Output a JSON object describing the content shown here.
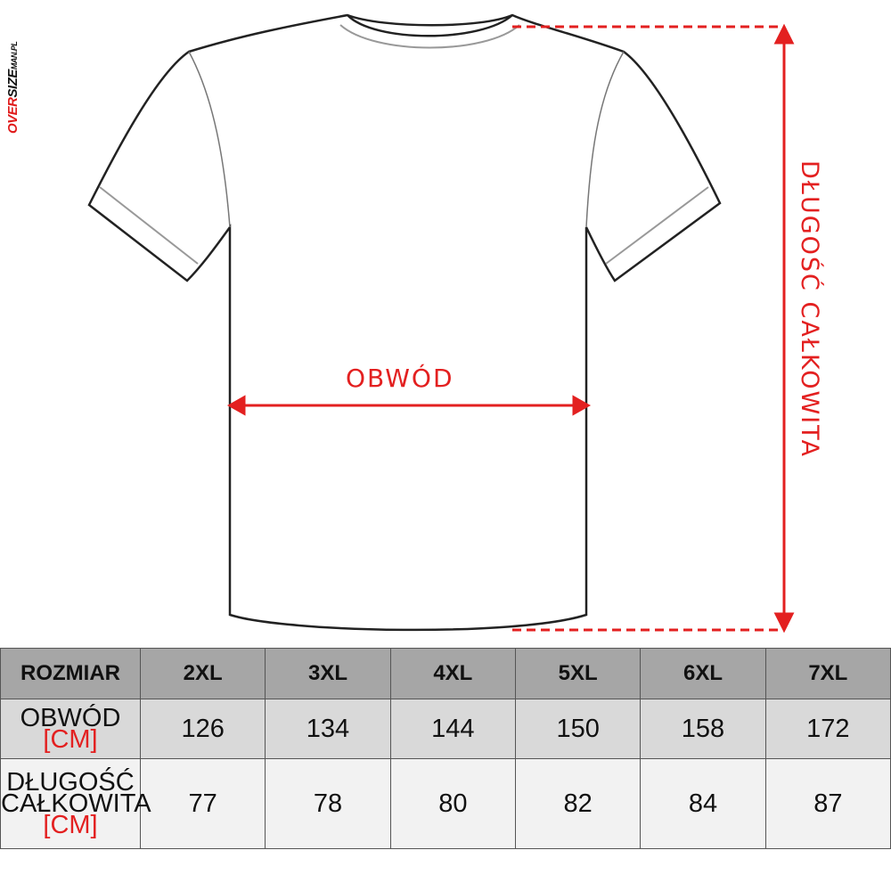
{
  "logo": {
    "part1": "OVER",
    "part2": "SIZE",
    "part3": "MAN.PL"
  },
  "diagram": {
    "width_label": "OBWÓD",
    "length_label": "DŁUGOŚĆ CAŁKOWITA",
    "accent": "#e32020"
  },
  "table": {
    "header": [
      "ROZMIAR",
      "2XL",
      "3XL",
      "4XL",
      "5XL",
      "6XL",
      "7XL"
    ],
    "rows": [
      {
        "label_lines": [
          "OBWÓD"
        ],
        "unit": "[CM]",
        "values": [
          "126",
          "134",
          "144",
          "150",
          "158",
          "172"
        ]
      },
      {
        "label_lines": [
          "DŁUGOŚĆ",
          "CAŁKOWITA"
        ],
        "unit": "[CM]",
        "values": [
          "77",
          "78",
          "80",
          "82",
          "84",
          "87"
        ]
      }
    ]
  }
}
